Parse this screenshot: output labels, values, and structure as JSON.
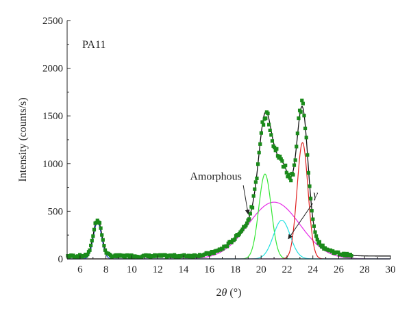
{
  "chart_data": {
    "type": "line",
    "title": "",
    "sample_label": "PA11",
    "xlabel_prefix": "2",
    "xlabel_symbol": "θ",
    "xlabel_unit": " (°)",
    "ylabel": "Intensity (counts/s)",
    "xlim": [
      5,
      30
    ],
    "ylim": [
      0,
      2500
    ],
    "x_ticks": [
      6,
      8,
      10,
      12,
      14,
      16,
      18,
      20,
      22,
      24,
      26,
      28,
      30
    ],
    "y_ticks": [
      0,
      500,
      1000,
      1500,
      2000,
      2500
    ],
    "grid": false,
    "annotations": [
      {
        "text": "Amorphous",
        "target": [
          19.0,
          470
        ],
        "text_at": [
          16.5,
          830
        ]
      },
      {
        "text": "γ",
        "target": [
          22.1,
          210
        ],
        "text_at": [
          24.2,
          640
        ]
      }
    ],
    "components": [
      {
        "key": "amorphous",
        "color": "#e629e6",
        "peaks": [
          {
            "center": 21.0,
            "height": 595,
            "width": 2.0
          }
        ]
      },
      {
        "key": "alpha1",
        "color": "#33e633",
        "peaks": [
          {
            "center": 20.3,
            "height": 890,
            "width": 0.48
          }
        ]
      },
      {
        "key": "gamma",
        "color": "#22e0e0",
        "peaks": [
          {
            "center": 21.6,
            "height": 405,
            "width": 0.65
          }
        ]
      },
      {
        "key": "alpha2",
        "color": "#e02020",
        "peaks": [
          {
            "center": 23.2,
            "height": 1220,
            "width": 0.42
          }
        ]
      },
      {
        "key": "low-angle",
        "color": "#2a4bd8",
        "peaks": [
          {
            "center": 7.35,
            "height": 385,
            "width": 0.32
          }
        ]
      }
    ],
    "fit": {
      "color": "#111111",
      "baseline": 30
    },
    "observed": {
      "color": "#1a8a1a"
    }
  }
}
